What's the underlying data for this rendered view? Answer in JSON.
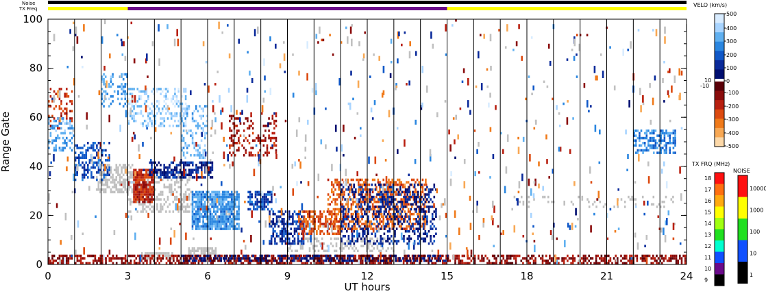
{
  "chart_data": {
    "type": "heatmap",
    "xlabel": "UT hours",
    "ylabel": "Range Gate",
    "xlim": [
      0,
      24
    ],
    "ylim": [
      0,
      100
    ],
    "x_ticks": [
      "0",
      "3",
      "6",
      "9",
      "12",
      "15",
      "18",
      "21",
      "24"
    ],
    "y_ticks": [
      "0",
      "20",
      "40",
      "60",
      "80",
      "100"
    ],
    "scan_boundaries_ut": [
      1,
      2,
      3,
      4,
      5,
      6,
      7,
      8,
      9,
      10,
      11,
      12,
      13,
      14,
      15,
      16,
      17,
      18,
      19,
      20,
      21,
      22,
      23
    ],
    "top_bars": {
      "noise_label": "Noise",
      "txfreq_label": "TX Freq",
      "txfreq_segments": [
        {
          "start": 0,
          "end": 3,
          "color": "#ffff00"
        },
        {
          "start": 3,
          "end": 15,
          "color": "#6a0a8a"
        },
        {
          "start": 15,
          "end": 24,
          "color": "#ffff00"
        }
      ]
    },
    "velocity_colorbar": {
      "title": "VELO (km/s)",
      "ticks": [
        "500",
        "400",
        "300",
        "200",
        "100",
        "10",
        "0",
        "-10",
        "-100",
        "-200",
        "-300",
        "-400",
        "-500"
      ],
      "colors_pos": [
        "#d8ecff",
        "#a8d4ff",
        "#60b0f0",
        "#2a86e0",
        "#1058c8",
        "#0a2a9a",
        "#000e70"
      ],
      "colors_neg": [
        "#5a0008",
        "#8a0c0c",
        "#b82010",
        "#dc4a10",
        "#f07a1a",
        "#f8a854",
        "#fcd8a8"
      ]
    },
    "txfreq_colorbar": {
      "title": "TX FRQ (MHz)",
      "ticks": [
        "18",
        "17",
        "16",
        "15",
        "14",
        "13",
        "12",
        "11",
        "10",
        "9"
      ],
      "colors": [
        "#ff1010",
        "#ff7010",
        "#ffaa10",
        "#ffff00",
        "#a0ff10",
        "#20e020",
        "#00ffd0",
        "#1050ff",
        "#6a0a8a",
        "#000000"
      ]
    },
    "noise_colorbar": {
      "title": "NOISE",
      "ticks": [
        "10000",
        "1000",
        "100",
        "10",
        "1"
      ],
      "colors": [
        "#ff1010",
        "#ffff00",
        "#20e020",
        "#1050ff",
        "#000000"
      ]
    },
    "ground_scatter_color": "#c0c0c0",
    "echo_regions": [
      {
        "label": "ground scatter",
        "t": [
          1.8,
          3.2
        ],
        "g": [
          29,
          41
        ],
        "v": "gs",
        "d": 0.6
      },
      {
        "label": "ground scatter",
        "t": [
          3.0,
          5.4
        ],
        "g": [
          21,
          38
        ],
        "v": "gs",
        "d": 0.4
      },
      {
        "label": "ground scatter",
        "t": [
          3.5,
          4.7
        ],
        "g": [
          2,
          5
        ],
        "v": "gs",
        "d": 0.8
      },
      {
        "label": "ground scatter",
        "t": [
          5.2,
          6.3
        ],
        "g": [
          4,
          7
        ],
        "v": "gs",
        "d": 0.7
      },
      {
        "label": "ground scatter",
        "t": [
          9.0,
          13.0
        ],
        "g": [
          5,
          11
        ],
        "v": "gs",
        "d": 0.3
      },
      {
        "label": "ground scatter",
        "t": [
          17.5,
          23.5
        ],
        "g": [
          23,
          28
        ],
        "v": "gs",
        "d": 0.12
      },
      {
        "label": "westward flow",
        "t": [
          0.0,
          0.9
        ],
        "g": [
          55,
          72
        ],
        "v": -200,
        "d": 0.3
      },
      {
        "label": "eastward flow",
        "t": [
          0.0,
          1.0
        ],
        "g": [
          46,
          60
        ],
        "v": 300,
        "d": 0.4
      },
      {
        "label": "eastward flow",
        "t": [
          1.0,
          2.3
        ],
        "g": [
          34,
          50
        ],
        "v": 150,
        "d": 0.45
      },
      {
        "label": "eastward flow",
        "t": [
          2.0,
          3.0
        ],
        "g": [
          64,
          78
        ],
        "v": 300,
        "d": 0.3
      },
      {
        "label": "eastward flow",
        "t": [
          3.0,
          5.2
        ],
        "g": [
          56,
          72
        ],
        "v": 380,
        "d": 0.35
      },
      {
        "label": "eastward flow",
        "t": [
          5.0,
          6.0
        ],
        "g": [
          43,
          65
        ],
        "v": 350,
        "d": 0.3
      },
      {
        "label": "westward flow",
        "t": [
          3.2,
          4.0
        ],
        "g": [
          25,
          39
        ],
        "v": -180,
        "d": 0.85
      },
      {
        "label": "eastward flow",
        "t": [
          3.8,
          6.2
        ],
        "g": [
          35,
          42
        ],
        "v": 80,
        "d": 0.6
      },
      {
        "label": "eastward flow",
        "t": [
          5.4,
          7.2
        ],
        "g": [
          14,
          30
        ],
        "v": 280,
        "d": 0.85
      },
      {
        "label": "eastward flow",
        "t": [
          7.5,
          8.4
        ],
        "g": [
          22,
          30
        ],
        "v": 150,
        "d": 0.7
      },
      {
        "label": "westward flow",
        "t": [
          6.8,
          8.6
        ],
        "g": [
          44,
          62
        ],
        "v": -150,
        "d": 0.25
      },
      {
        "label": "eastward flow",
        "t": [
          8.3,
          9.6
        ],
        "g": [
          8,
          22
        ],
        "v": 120,
        "d": 0.55
      },
      {
        "label": "westward flow",
        "t": [
          9.4,
          11.0
        ],
        "g": [
          12,
          22
        ],
        "v": -260,
        "d": 0.55
      },
      {
        "label": "westward flow",
        "t": [
          10.5,
          14.2
        ],
        "g": [
          14,
          35
        ],
        "v": -280,
        "d": 0.5
      },
      {
        "label": "eastward flow",
        "t": [
          11.0,
          14.6
        ],
        "g": [
          8,
          33
        ],
        "v": 80,
        "d": 0.35
      },
      {
        "label": "westward flow",
        "t": [
          0.0,
          24.0
        ],
        "g": [
          0,
          4
        ],
        "v": -120,
        "d": 0.55
      },
      {
        "label": "eastward flow",
        "t": [
          5.0,
          15.0
        ],
        "g": [
          1,
          4
        ],
        "v": 30,
        "d": 0.6
      },
      {
        "label": "eastward flow",
        "t": [
          22.0,
          23.6
        ],
        "g": [
          45,
          55
        ],
        "v": 250,
        "d": 0.5
      }
    ]
  }
}
